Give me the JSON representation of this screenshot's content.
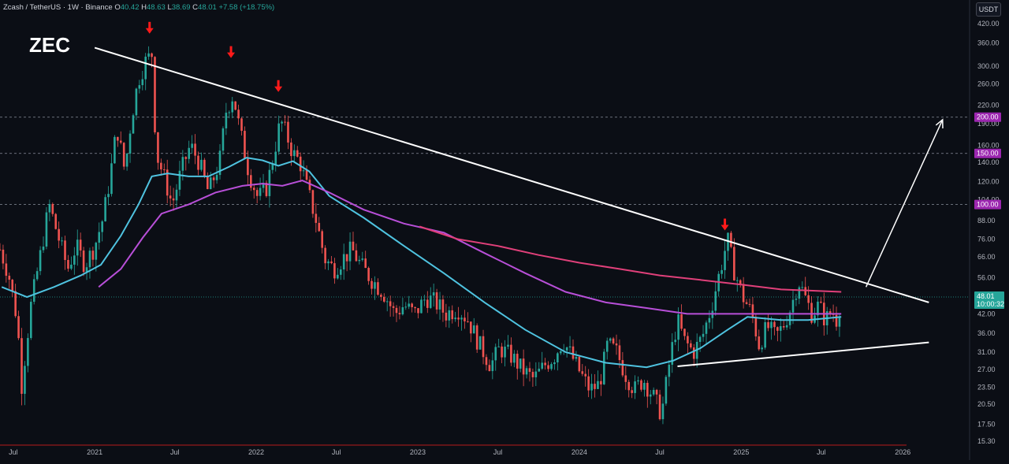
{
  "header": {
    "symbol": "Zcash / TetherUS · 1W · Binance",
    "open_key": "O",
    "open": "40.42",
    "high_key": "H",
    "high": "48.63",
    "low_key": "L",
    "low": "38.69",
    "close_key": "C",
    "close": "48.01",
    "change": "+7.58 (+18.75%)"
  },
  "asset_label": "ZEC",
  "currency_button": "USDT",
  "colors": {
    "background": "#0b0e15",
    "up_candle": "#26a69a",
    "down_candle": "#ef5350",
    "ma_fast": "#4fc3e0",
    "ma_mid": "#b84fd8",
    "ma_slow": "#e0407a",
    "trendline": "#ffffff",
    "arrow_marker": "#ff1a1a",
    "level_label": "#9c27b0",
    "price_label": "#26a69a"
  },
  "chart_data": {
    "type": "candlestick",
    "title": "ZEC",
    "y_scale": "log",
    "ylim": [
      15.3,
      420
    ],
    "x_range": [
      "2020-06-01",
      "2026-06-01"
    ],
    "grid": false,
    "y_ticks": [
      "420.00",
      "360.00",
      "300.00",
      "260.00",
      "220.00",
      "190.00",
      "160.00",
      "140.00",
      "120.00",
      "104.00",
      "88.00",
      "76.00",
      "66.00",
      "56.00",
      "42.00",
      "36.00",
      "31.00",
      "27.00",
      "23.50",
      "20.50",
      "17.50",
      "15.30"
    ],
    "x_ticks": [
      {
        "label": "Jul",
        "date": "2020-07-01"
      },
      {
        "label": "2021",
        "date": "2021-01-01"
      },
      {
        "label": "Jul",
        "date": "2021-07-01"
      },
      {
        "label": "2022",
        "date": "2022-01-01"
      },
      {
        "label": "Jul",
        "date": "2022-07-01"
      },
      {
        "label": "2023",
        "date": "2023-01-01"
      },
      {
        "label": "Jul",
        "date": "2023-07-01"
      },
      {
        "label": "2024",
        "date": "2024-01-01"
      },
      {
        "label": "Jul",
        "date": "2024-07-01"
      },
      {
        "label": "2025",
        "date": "2025-01-01"
      },
      {
        "label": "Jul",
        "date": "2025-07-01"
      },
      {
        "label": "2026",
        "date": "2026-01-01"
      }
    ],
    "price_path": [
      [
        "2020-06-01",
        70
      ],
      [
        "2020-06-20",
        58
      ],
      [
        "2020-07-10",
        40
      ],
      [
        "2020-07-20",
        24
      ],
      [
        "2020-08-10",
        45
      ],
      [
        "2020-09-01",
        68
      ],
      [
        "2020-09-20",
        100
      ],
      [
        "2020-10-10",
        78
      ],
      [
        "2020-11-01",
        60
      ],
      [
        "2020-11-20",
        72
      ],
      [
        "2020-12-10",
        62
      ],
      [
        "2021-01-01",
        72
      ],
      [
        "2021-01-20",
        90
      ],
      [
        "2021-02-05",
        125
      ],
      [
        "2021-02-20",
        185
      ],
      [
        "2021-03-10",
        130
      ],
      [
        "2021-03-25",
        200
      ],
      [
        "2021-04-10",
        270
      ],
      [
        "2021-04-25",
        310
      ],
      [
        "2021-05-10",
        330
      ],
      [
        "2021-05-20",
        150
      ],
      [
        "2021-06-10",
        120
      ],
      [
        "2021-06-25",
        100
      ],
      [
        "2021-07-15",
        130
      ],
      [
        "2021-08-05",
        160
      ],
      [
        "2021-08-25",
        140
      ],
      [
        "2021-09-15",
        110
      ],
      [
        "2021-10-10",
        140
      ],
      [
        "2021-10-25",
        210
      ],
      [
        "2021-11-10",
        240
      ],
      [
        "2021-11-25",
        180
      ],
      [
        "2021-12-15",
        130
      ],
      [
        "2022-01-05",
        105
      ],
      [
        "2022-01-25",
        115
      ],
      [
        "2022-02-10",
        150
      ],
      [
        "2022-02-25",
        195
      ],
      [
        "2022-03-10",
        175
      ],
      [
        "2022-03-25",
        150
      ],
      [
        "2022-04-10",
        140
      ],
      [
        "2022-04-25",
        115
      ],
      [
        "2022-05-15",
        90
      ],
      [
        "2022-06-05",
        65
      ],
      [
        "2022-06-25",
        60
      ],
      [
        "2022-07-15",
        65
      ],
      [
        "2022-08-05",
        70
      ],
      [
        "2022-08-25",
        62
      ],
      [
        "2022-09-15",
        56
      ],
      [
        "2022-10-15",
        50
      ],
      [
        "2022-11-10",
        42
      ],
      [
        "2022-12-01",
        45
      ],
      [
        "2022-12-25",
        42
      ],
      [
        "2023-01-20",
        48
      ],
      [
        "2023-02-10",
        46
      ],
      [
        "2023-03-05",
        42
      ],
      [
        "2023-04-01",
        44
      ],
      [
        "2023-04-25",
        40
      ],
      [
        "2023-05-20",
        33
      ],
      [
        "2023-06-15",
        28
      ],
      [
        "2023-07-05",
        32
      ],
      [
        "2023-08-01",
        30
      ],
      [
        "2023-08-25",
        27
      ],
      [
        "2023-09-20",
        25
      ],
      [
        "2023-10-15",
        28
      ],
      [
        "2023-11-05",
        30
      ],
      [
        "2023-11-25",
        34
      ],
      [
        "2023-12-15",
        30
      ],
      [
        "2024-01-05",
        26
      ],
      [
        "2024-01-25",
        23
      ],
      [
        "2024-02-15",
        24
      ],
      [
        "2024-03-05",
        33
      ],
      [
        "2024-03-25",
        31
      ],
      [
        "2024-04-15",
        26
      ],
      [
        "2024-05-05",
        23
      ],
      [
        "2024-05-25",
        25
      ],
      [
        "2024-06-15",
        22
      ],
      [
        "2024-07-05",
        19
      ],
      [
        "2024-07-25",
        30
      ],
      [
        "2024-08-10",
        40
      ],
      [
        "2024-08-25",
        34
      ],
      [
        "2024-09-15",
        31
      ],
      [
        "2024-10-05",
        35
      ],
      [
        "2024-10-25",
        44
      ],
      [
        "2024-11-15",
        60
      ],
      [
        "2024-12-01",
        76
      ],
      [
        "2024-12-15",
        60
      ],
      [
        "2025-01-05",
        48
      ],
      [
        "2025-01-25",
        42
      ],
      [
        "2025-02-10",
        33
      ],
      [
        "2025-03-01",
        38
      ],
      [
        "2025-03-20",
        35
      ],
      [
        "2025-04-05",
        38
      ],
      [
        "2025-04-25",
        45
      ],
      [
        "2025-05-10",
        55
      ],
      [
        "2025-05-25",
        48
      ],
      [
        "2025-06-10",
        42
      ],
      [
        "2025-06-25",
        45
      ],
      [
        "2025-07-10",
        40
      ],
      [
        "2025-07-25",
        43
      ],
      [
        "2025-08-05",
        40
      ],
      [
        "2025-08-15",
        48
      ]
    ],
    "moving_averages": [
      {
        "color": "#4fc3e0",
        "points": [
          [
            "2020-06-05",
            52
          ],
          [
            "2020-08-01",
            48
          ],
          [
            "2020-10-01",
            52
          ],
          [
            "2020-12-01",
            57
          ],
          [
            "2021-01-15",
            62
          ],
          [
            "2021-03-01",
            78
          ],
          [
            "2021-04-10",
            100
          ],
          [
            "2021-05-10",
            125
          ],
          [
            "2021-06-15",
            128
          ],
          [
            "2021-08-01",
            125
          ],
          [
            "2021-09-15",
            125
          ],
          [
            "2021-11-01",
            135
          ],
          [
            "2021-12-10",
            145
          ],
          [
            "2022-01-15",
            142
          ],
          [
            "2022-02-20",
            136
          ],
          [
            "2022-03-25",
            141
          ],
          [
            "2022-05-01",
            130
          ],
          [
            "2022-06-15",
            107
          ],
          [
            "2022-09-01",
            90
          ],
          [
            "2022-12-01",
            72
          ],
          [
            "2023-03-01",
            58
          ],
          [
            "2023-06-01",
            46
          ],
          [
            "2023-09-01",
            37
          ],
          [
            "2023-12-01",
            31
          ],
          [
            "2024-03-01",
            28.5
          ],
          [
            "2024-06-01",
            27.5
          ],
          [
            "2024-08-01",
            29
          ],
          [
            "2024-10-01",
            32
          ],
          [
            "2024-12-01",
            37
          ],
          [
            "2025-01-15",
            41
          ],
          [
            "2025-04-01",
            40
          ],
          [
            "2025-06-01",
            40
          ],
          [
            "2025-08-15",
            41
          ]
        ]
      },
      {
        "color": "#b84fd8",
        "points": [
          [
            "2021-01-10",
            52
          ],
          [
            "2021-03-01",
            60
          ],
          [
            "2021-04-20",
            77
          ],
          [
            "2021-06-01",
            93
          ],
          [
            "2021-08-01",
            100
          ],
          [
            "2021-10-01",
            110
          ],
          [
            "2021-12-01",
            116
          ],
          [
            "2022-01-15",
            118
          ],
          [
            "2022-03-01",
            116
          ],
          [
            "2022-04-15",
            121
          ],
          [
            "2022-06-15",
            110
          ],
          [
            "2022-09-01",
            96
          ],
          [
            "2022-12-01",
            86
          ],
          [
            "2023-03-01",
            80
          ],
          [
            "2023-06-01",
            68
          ],
          [
            "2023-09-01",
            58
          ],
          [
            "2023-12-01",
            50
          ],
          [
            "2024-03-01",
            46
          ],
          [
            "2024-06-01",
            44
          ],
          [
            "2024-09-01",
            42
          ],
          [
            "2024-12-01",
            42
          ],
          [
            "2025-03-01",
            42
          ],
          [
            "2025-06-01",
            42
          ],
          [
            "2025-08-15",
            42
          ]
        ]
      },
      {
        "color": "#e0407a",
        "points": [
          [
            "2023-01-05",
            84
          ],
          [
            "2023-04-01",
            76
          ],
          [
            "2023-07-01",
            72
          ],
          [
            "2023-10-01",
            67
          ],
          [
            "2024-01-01",
            63
          ],
          [
            "2024-04-01",
            60
          ],
          [
            "2024-07-01",
            57
          ],
          [
            "2024-10-01",
            55
          ],
          [
            "2025-01-01",
            53
          ],
          [
            "2025-04-01",
            51
          ],
          [
            "2025-08-15",
            50
          ]
        ]
      }
    ],
    "trendlines": [
      {
        "name": "descending",
        "from": [
          "2021-01-01",
          347
        ],
        "to": [
          "2026-03-01",
          46
        ]
      },
      {
        "name": "ascending",
        "from": [
          "2024-08-10",
          27.7
        ],
        "to": [
          "2026-03-01",
          33.5
        ]
      }
    ],
    "projection_arrow": {
      "from": [
        "2025-10-10",
        52
      ],
      "to": [
        "2026-04-01",
        196
      ]
    },
    "peak_markers": [
      [
        "2021-05-05",
        400
      ],
      [
        "2021-11-05",
        330
      ],
      [
        "2022-02-20",
        252
      ],
      [
        "2024-11-25",
        84
      ]
    ],
    "horizontal_levels": [
      {
        "value": 200,
        "label": "200.00"
      },
      {
        "value": 150,
        "label": "150.00"
      },
      {
        "value": 100,
        "label": "100.00"
      }
    ],
    "last_price": {
      "value": 48.01,
      "label": "48.01",
      "countdown": "10:00:32"
    }
  }
}
